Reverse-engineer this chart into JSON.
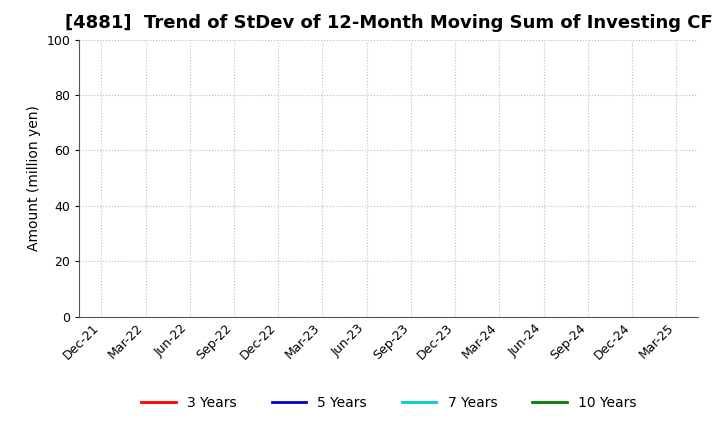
{
  "title": "[4881]  Trend of StDev of 12-Month Moving Sum of Investing CF",
  "ylabel": "Amount (million yen)",
  "ylim": [
    0,
    100
  ],
  "yticks": [
    0,
    20,
    40,
    60,
    80,
    100
  ],
  "xtick_labels": [
    "Dec-21",
    "Mar-22",
    "Jun-22",
    "Sep-22",
    "Dec-22",
    "Mar-23",
    "Jun-23",
    "Sep-23",
    "Dec-23",
    "Mar-24",
    "Jun-24",
    "Sep-24",
    "Dec-24",
    "Mar-25"
  ],
  "background_color": "#ffffff",
  "plot_bg_color": "#ffffff",
  "grid_color": "#bbbbbb",
  "legend_items": [
    {
      "label": "3 Years",
      "color": "#ff0000"
    },
    {
      "label": "5 Years",
      "color": "#0000cc"
    },
    {
      "label": "7 Years",
      "color": "#00cccc"
    },
    {
      "label": "10 Years",
      "color": "#008000"
    }
  ],
  "title_fontsize": 13,
  "axis_label_fontsize": 10,
  "tick_fontsize": 9,
  "legend_fontsize": 10
}
